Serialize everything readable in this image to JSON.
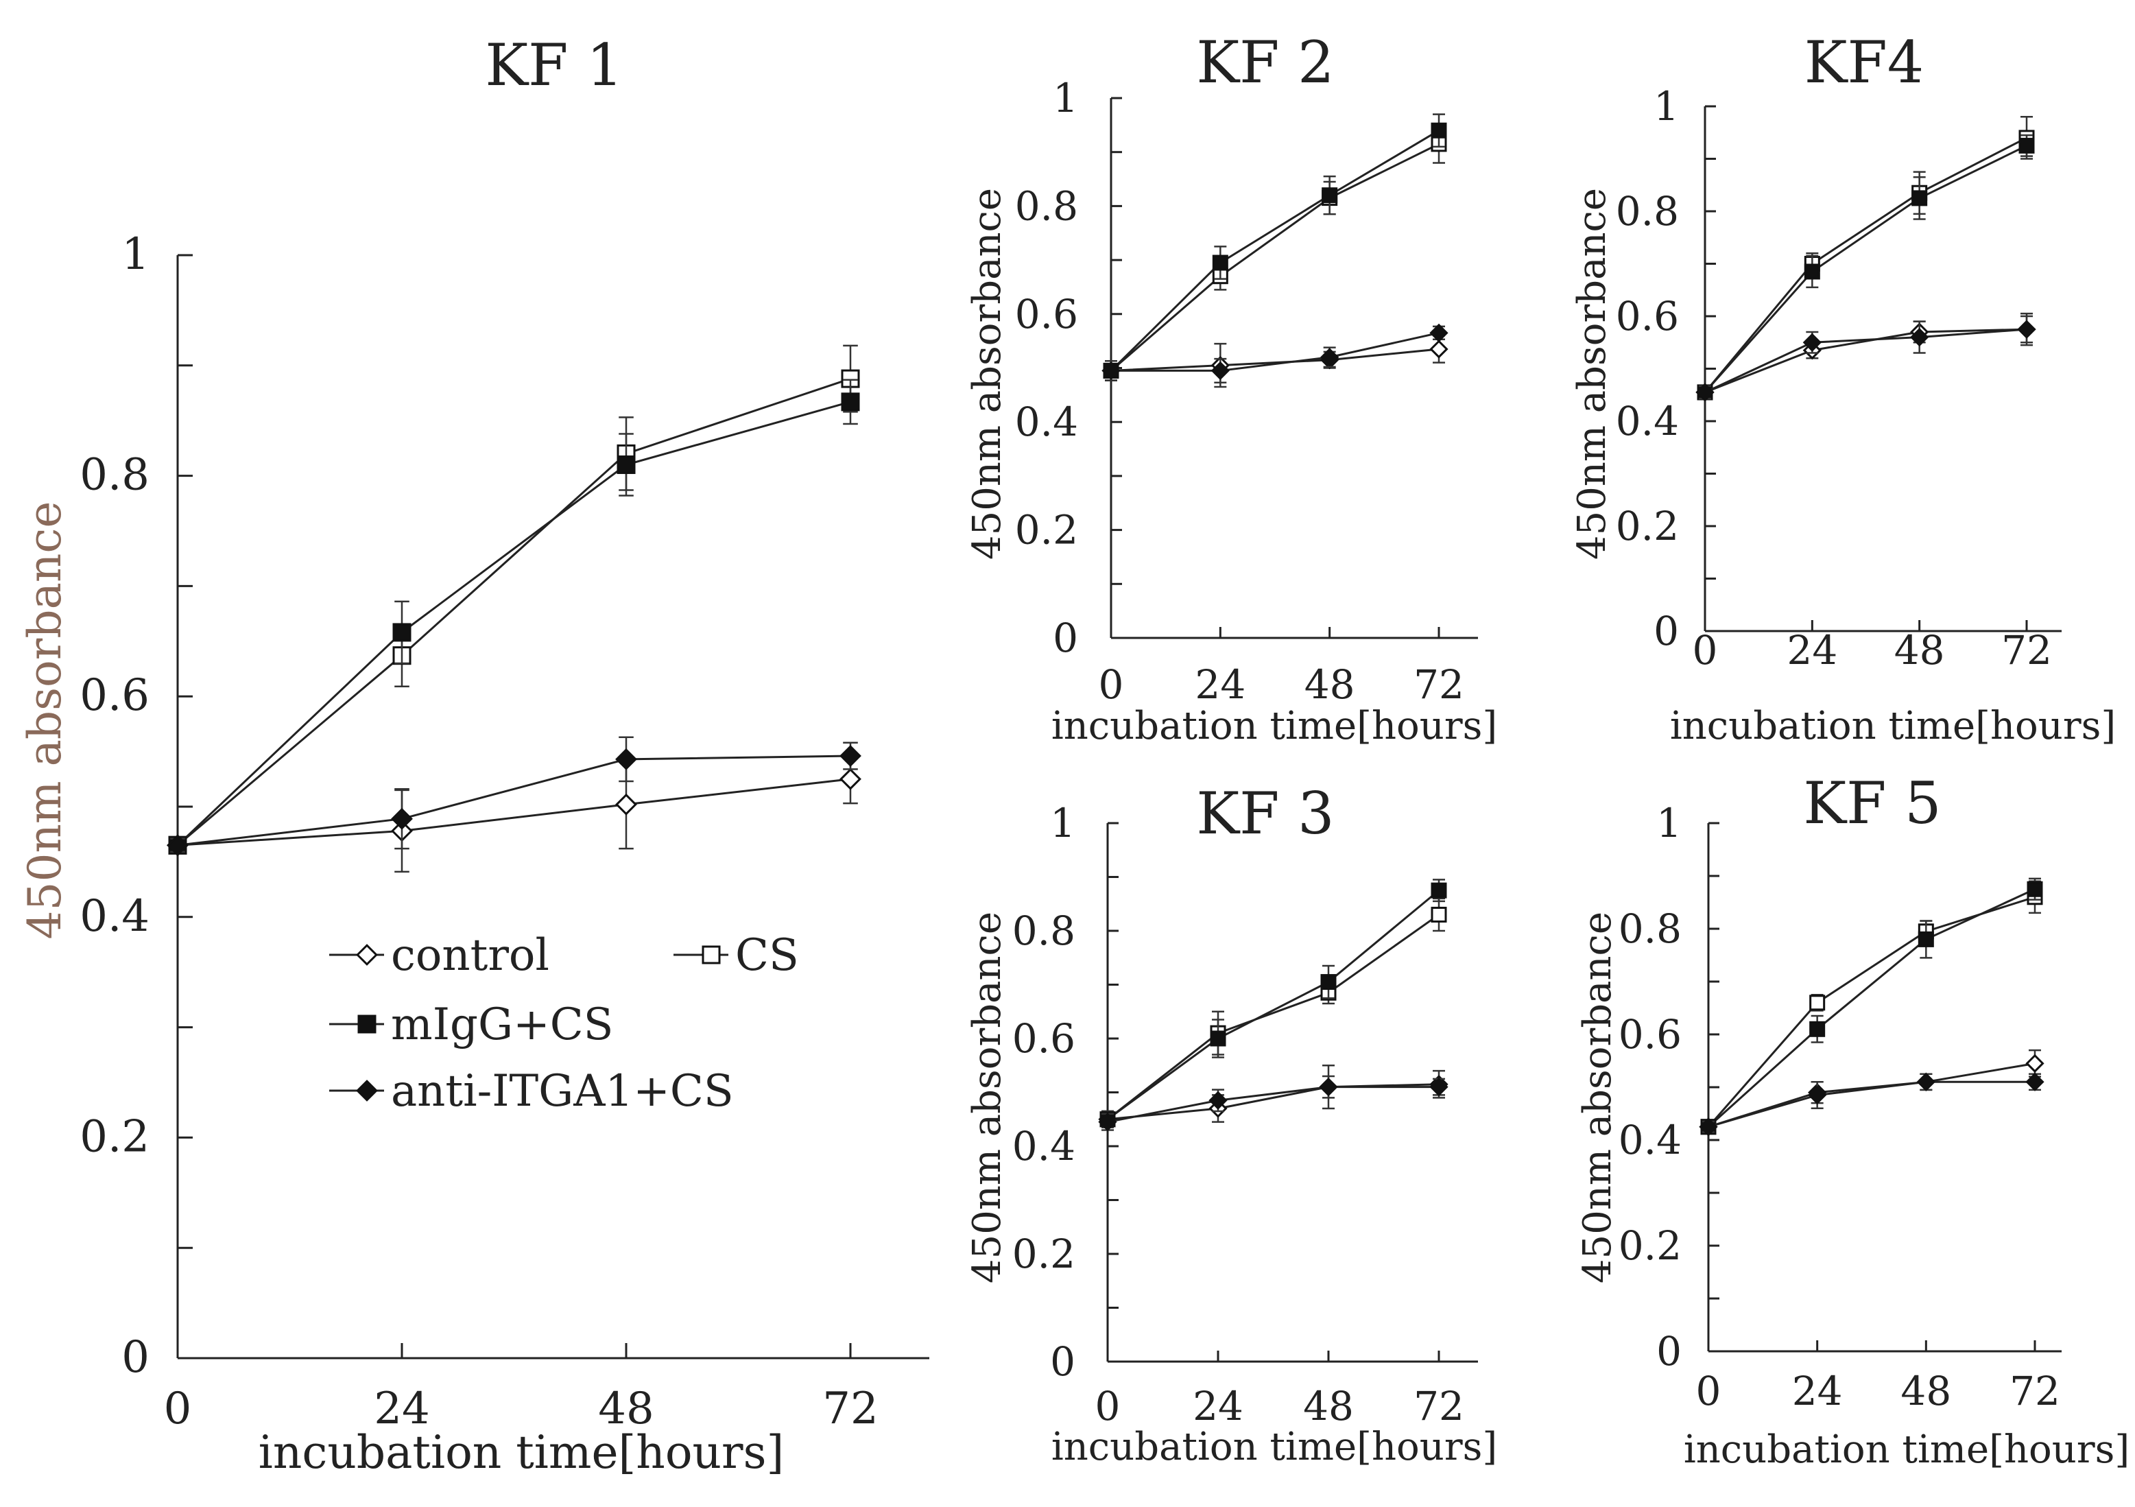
{
  "chart_data": [
    {
      "type": "line",
      "title": "KF 1",
      "xlabel": "incubation time[hours]",
      "ylabel": "450nm absorbance",
      "x": [
        0,
        24,
        48,
        72
      ],
      "xticks": [
        "0",
        "24",
        "48",
        "72"
      ],
      "yticks": [
        "0",
        "0.2",
        "0.4",
        "0.6",
        "0.8",
        "1"
      ],
      "ylim": [
        0,
        1
      ],
      "legend": "lower-center",
      "series": [
        {
          "name": "control",
          "marker": "diamond-open",
          "values": [
            0.465,
            0.478,
            0.502,
            0.525
          ],
          "errors": [
            0.006,
            0.037,
            0.04,
            0.022
          ]
        },
        {
          "name": "CS",
          "marker": "square-open",
          "values": [
            0.465,
            0.637,
            0.82,
            0.888
          ],
          "errors": [
            0.006,
            0.028,
            0.033,
            0.03
          ]
        },
        {
          "name": "mIgG+CS",
          "marker": "square-filled",
          "values": [
            0.465,
            0.658,
            0.81,
            0.867
          ],
          "errors": [
            0.006,
            0.028,
            0.028,
            0.02
          ]
        },
        {
          "name": "anti-ITGA1+CS",
          "marker": "diamond-filled",
          "values": [
            0.465,
            0.489,
            0.543,
            0.546
          ],
          "errors": [
            0.006,
            0.027,
            0.02,
            0.012
          ]
        }
      ]
    },
    {
      "type": "line",
      "title": "KF 2",
      "xlabel": "incubation time[hours]",
      "ylabel": "450nm absorbance",
      "x": [
        0,
        24,
        48,
        72
      ],
      "xticks": [
        "0",
        "24",
        "48",
        "72"
      ],
      "yticks": [
        "0",
        "0.2",
        "0.4",
        "0.6",
        "0.8",
        "1"
      ],
      "ylim": [
        0,
        1
      ],
      "series": [
        {
          "name": "control",
          "marker": "diamond-open",
          "values": [
            0.495,
            0.505,
            0.515,
            0.535
          ],
          "errors": [
            0.018,
            0.04,
            0.015,
            0.025
          ]
        },
        {
          "name": "CS",
          "marker": "square-open",
          "values": [
            0.495,
            0.67,
            0.815,
            0.915
          ],
          "errors": [
            0.018,
            0.025,
            0.03,
            0.035
          ]
        },
        {
          "name": "mIgG+CS",
          "marker": "square-filled",
          "values": [
            0.495,
            0.695,
            0.82,
            0.94
          ],
          "errors": [
            0.018,
            0.03,
            0.035,
            0.03
          ]
        },
        {
          "name": "anti-ITGA1+CS",
          "marker": "diamond-filled",
          "values": [
            0.495,
            0.495,
            0.52,
            0.565
          ],
          "errors": [
            0.018,
            0.022,
            0.018,
            0.012
          ]
        }
      ]
    },
    {
      "type": "line",
      "title": "KF4",
      "xlabel": "incubation time[hours]",
      "ylabel": "450nm absorbance",
      "x": [
        0,
        24,
        48,
        72
      ],
      "xticks": [
        "0",
        "24",
        "48",
        "72"
      ],
      "yticks": [
        "0",
        "0.2",
        "0.4",
        "0.6",
        "0.8",
        "1"
      ],
      "ylim": [
        0,
        1
      ],
      "series": [
        {
          "name": "control",
          "marker": "diamond-open",
          "values": [
            0.455,
            0.535,
            0.57,
            0.575
          ],
          "errors": [
            0.012,
            0.015,
            0.02,
            0.03
          ]
        },
        {
          "name": "CS",
          "marker": "square-open",
          "values": [
            0.455,
            0.7,
            0.835,
            0.94
          ],
          "errors": [
            0.012,
            0.02,
            0.04,
            0.04
          ]
        },
        {
          "name": "mIgG+CS",
          "marker": "square-filled",
          "values": [
            0.455,
            0.685,
            0.825,
            0.925
          ],
          "errors": [
            0.012,
            0.03,
            0.04,
            0.02
          ]
        },
        {
          "name": "anti-ITGA1+CS",
          "marker": "diamond-filled",
          "values": [
            0.455,
            0.55,
            0.56,
            0.575
          ],
          "errors": [
            0.012,
            0.02,
            0.03,
            0.025
          ]
        }
      ]
    },
    {
      "type": "line",
      "title": "KF 3",
      "xlabel": "incubation time[hours]",
      "ylabel": "450nm absorbance",
      "x": [
        0,
        24,
        48,
        72
      ],
      "xticks": [
        "0",
        "24",
        "48",
        "72"
      ],
      "yticks": [
        "0",
        "0.2",
        "0.4",
        "0.6",
        "0.8",
        "1"
      ],
      "ylim": [
        0,
        1
      ],
      "series": [
        {
          "name": "control",
          "marker": "diamond-open",
          "values": [
            0.45,
            0.47,
            0.51,
            0.515
          ],
          "errors": [
            0.015,
            0.025,
            0.04,
            0.025
          ]
        },
        {
          "name": "CS",
          "marker": "square-open",
          "values": [
            0.45,
            0.61,
            0.685,
            0.83
          ],
          "errors": [
            0.015,
            0.04,
            0.02,
            0.03
          ]
        },
        {
          "name": "mIgG+CS",
          "marker": "square-filled",
          "values": [
            0.45,
            0.6,
            0.705,
            0.875
          ],
          "errors": [
            0.015,
            0.035,
            0.03,
            0.02
          ]
        },
        {
          "name": "anti-ITGA1+CS",
          "marker": "diamond-filled",
          "values": [
            0.445,
            0.485,
            0.51,
            0.51
          ],
          "errors": [
            0.015,
            0.02,
            0.02,
            0.015
          ]
        }
      ]
    },
    {
      "type": "line",
      "title": "KF 5",
      "xlabel": "incubation time[hours]",
      "ylabel": "450nm absorbance",
      "x": [
        0,
        24,
        48,
        72
      ],
      "xticks": [
        "0",
        "24",
        "48",
        "72"
      ],
      "yticks": [
        "0",
        "0.2",
        "0.4",
        "0.6",
        "0.8",
        "1"
      ],
      "ylim": [
        0,
        1
      ],
      "series": [
        {
          "name": "control",
          "marker": "diamond-open",
          "values": [
            0.425,
            0.49,
            0.51,
            0.545
          ],
          "errors": [
            0.01,
            0.02,
            0.015,
            0.025
          ]
        },
        {
          "name": "CS",
          "marker": "square-open",
          "values": [
            0.425,
            0.66,
            0.795,
            0.86
          ],
          "errors": [
            0.01,
            0.015,
            0.02,
            0.03
          ]
        },
        {
          "name": "mIgG+CS",
          "marker": "square-filled",
          "values": [
            0.425,
            0.61,
            0.78,
            0.875
          ],
          "errors": [
            0.01,
            0.025,
            0.035,
            0.02
          ]
        },
        {
          "name": "anti-ITGA1+CS",
          "marker": "diamond-filled",
          "values": [
            0.425,
            0.485,
            0.51,
            0.51
          ],
          "errors": [
            0.01,
            0.025,
            0.015,
            0.015
          ]
        }
      ]
    }
  ]
}
